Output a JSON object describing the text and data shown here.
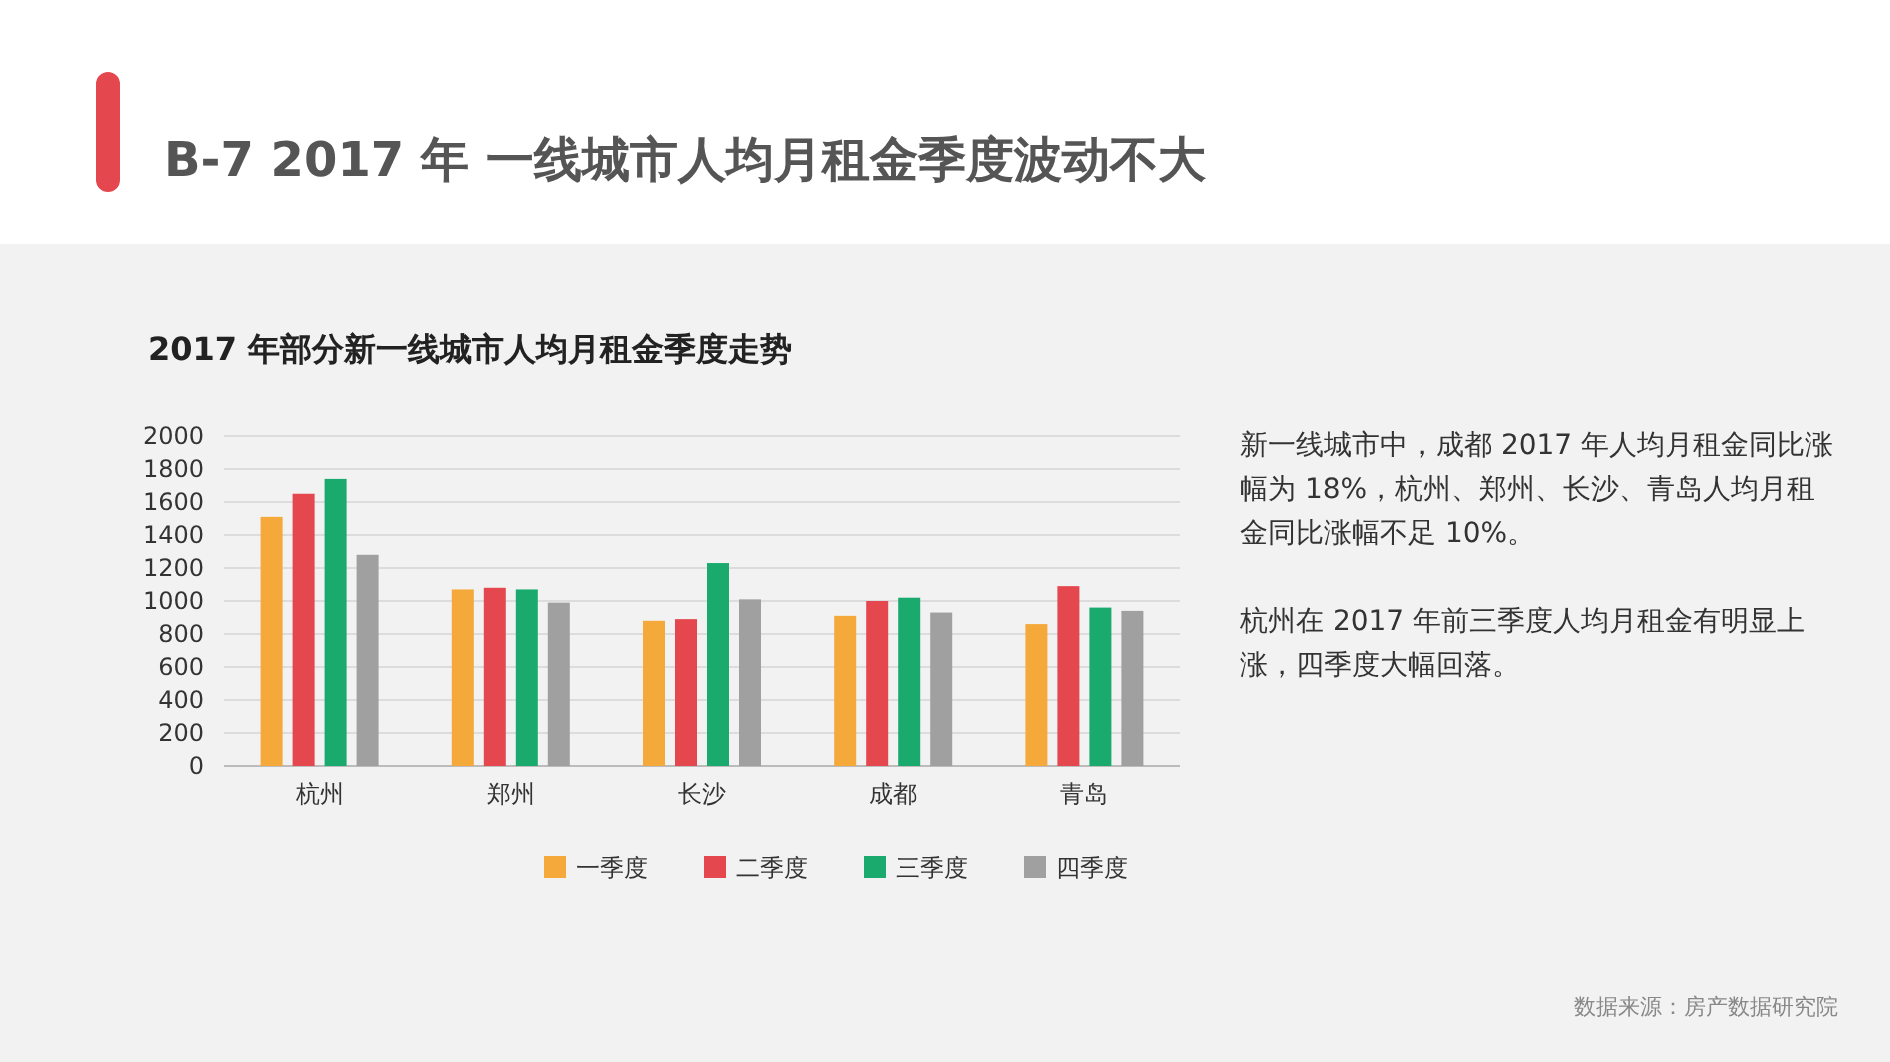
{
  "chart_data": {
    "type": "bar",
    "title": "B-7 2017 年 一线城市人均月租金季度波动不大",
    "subtitle": "2017 年部分新一线城市人均月租金季度走势",
    "categories": [
      "杭州",
      "郑州",
      "长沙",
      "成都",
      "青岛"
    ],
    "series": [
      {
        "name": "一季度",
        "color": "#f4a93a",
        "values": [
          1510,
          1070,
          880,
          910,
          860
        ]
      },
      {
        "name": "二季度",
        "color": "#e5474e",
        "values": [
          1650,
          1080,
          890,
          1000,
          1090
        ]
      },
      {
        "name": "三季度",
        "color": "#1aaa6e",
        "values": [
          1740,
          1070,
          1230,
          1020,
          960
        ]
      },
      {
        "name": "四季度",
        "color": "#a0a0a0",
        "values": [
          1280,
          990,
          1010,
          930,
          940
        ]
      }
    ],
    "ylim": [
      0,
      2000
    ],
    "yticks": [
      0,
      200,
      400,
      600,
      800,
      1000,
      1200,
      1400,
      1600,
      1800,
      2000
    ],
    "grid": "y",
    "legend": "bottom",
    "annotations": [
      "新一线城市中，成都 2017 年人均月租金同比涨幅为 18%，杭州、郑州、长沙、青岛人均月租金同比涨幅不足 10%。",
      "杭州在 2017 年前三季度人均月租金有明显上涨，四季度大幅回落。",
      "数据来源：房产数据研究院"
    ]
  }
}
